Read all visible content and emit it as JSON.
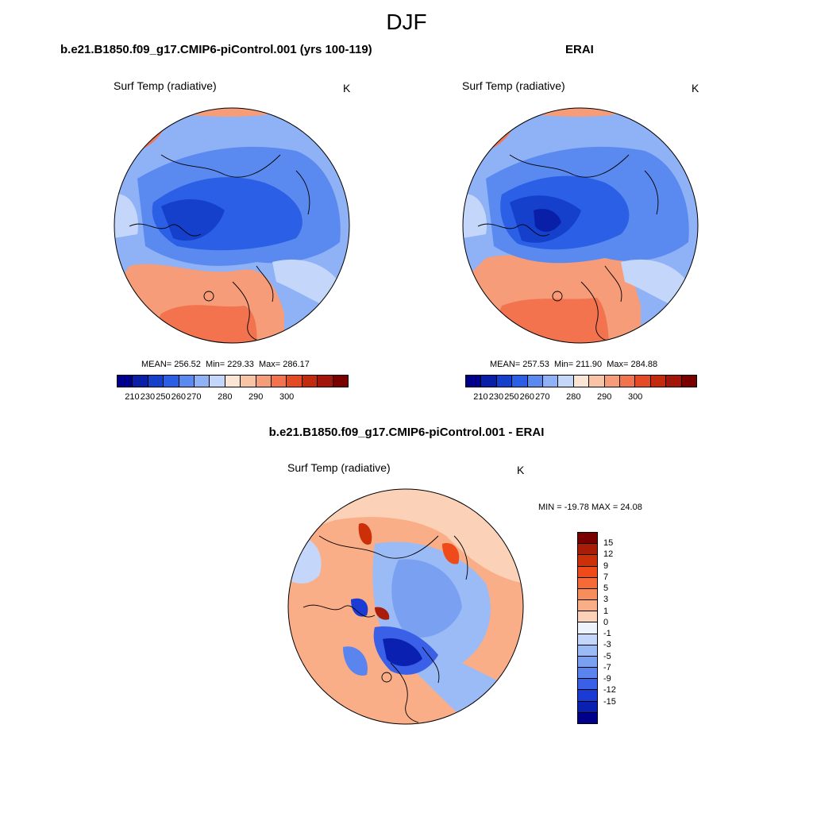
{
  "main_title": "DJF",
  "panels": {
    "model": {
      "title": "b.e21.B1850.f09_g17.CMIP6-piControl.001 (yrs 100-119)",
      "variable": "Surf Temp (radiative)",
      "units": "K",
      "mean": "MEAN= 256.52",
      "min": "Min= 229.33",
      "max": "Max= 286.17"
    },
    "obs": {
      "title": "ERAI",
      "variable": "Surf Temp (radiative)",
      "units": "K",
      "mean": "MEAN= 257.53",
      "min": "Min= 211.90",
      "max": "Max= 284.88"
    },
    "diff": {
      "title": "b.e21.B1850.f09_g17.CMIP6-piControl.001 - ERAI",
      "variable": "Surf Temp (radiative)",
      "units": "K",
      "minmax": "MIN = -19.78 MAX =  24.08"
    }
  },
  "colorbar_abs": {
    "colors": [
      "#00008b",
      "#0a1fa8",
      "#1440cc",
      "#2a5fe6",
      "#5a8af0",
      "#8fb1f5",
      "#c4d7fa",
      "#fbe6d6",
      "#f9c3a6",
      "#f69c78",
      "#f2734e",
      "#e44a24",
      "#c42a0c",
      "#a31607",
      "#7a0000"
    ],
    "tick_labels": [
      "210",
      "230",
      "250",
      "260",
      "270",
      "280",
      "290",
      "300"
    ]
  },
  "colorbar_diff": {
    "colors": [
      "#7a0000",
      "#a81c08",
      "#cc3008",
      "#ee4a1a",
      "#f56a36",
      "#f78c5c",
      "#f9ae88",
      "#fbd2b8",
      "#eef2fc",
      "#c4d7fa",
      "#9bbbf6",
      "#7aa0f2",
      "#5a84ee",
      "#3a60e8",
      "#1a3cd4",
      "#0a20b0",
      "#00008b"
    ],
    "tick_labels": [
      "15",
      "12",
      "9",
      "7",
      "5",
      "3",
      "1",
      "0",
      "-1",
      "-3",
      "-5",
      "-7",
      "-9",
      "-12",
      "-15"
    ]
  }
}
